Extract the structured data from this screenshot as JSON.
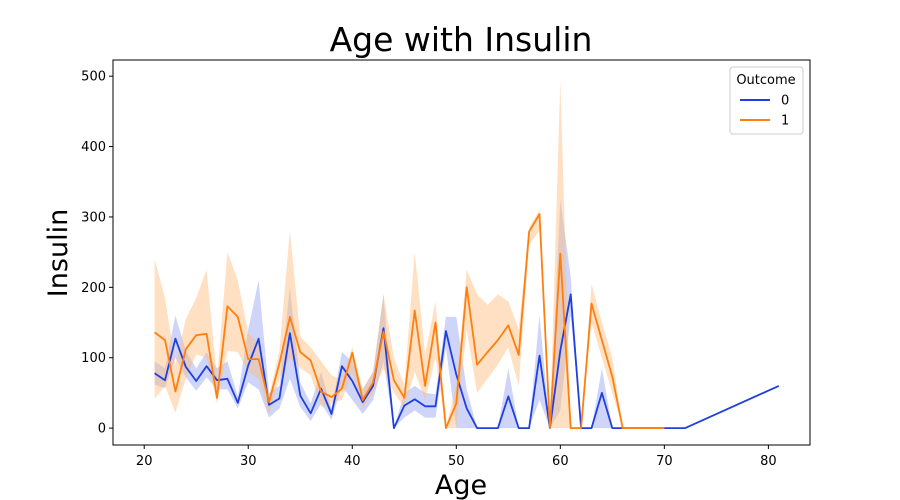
{
  "chart_data": {
    "type": "line",
    "title": "Age with Insulin",
    "xlabel": "Age",
    "ylabel": "Insulin",
    "xlim": [
      17,
      84
    ],
    "ylim": [
      -24,
      523
    ],
    "xticks": [
      20,
      30,
      40,
      50,
      60,
      70,
      80
    ],
    "yticks": [
      0,
      100,
      200,
      300,
      400,
      500
    ],
    "grid": false,
    "legend": {
      "title": "Outcome",
      "placement": "top-right"
    },
    "series": [
      {
        "name": "0",
        "color": "#1f3fe0",
        "band_color": "#1f3fe0",
        "x": [
          21,
          22,
          23,
          24,
          25,
          26,
          27,
          28,
          29,
          30,
          31,
          32,
          33,
          34,
          35,
          36,
          37,
          38,
          39,
          40,
          41,
          42,
          43,
          44,
          45,
          46,
          47,
          48,
          49,
          50,
          51,
          52,
          53,
          54,
          55,
          56,
          57,
          58,
          59,
          60,
          61,
          62,
          63,
          64,
          65,
          66,
          67,
          68,
          69,
          70,
          72,
          81
        ],
        "y": [
          78,
          68,
          127,
          87,
          67,
          88,
          68,
          70,
          36,
          89,
          127,
          33,
          42,
          135,
          46,
          21,
          56,
          20,
          88,
          67,
          37,
          60,
          142,
          0,
          32,
          41,
          31,
          31,
          138,
          76,
          28,
          0,
          0,
          0,
          45,
          0,
          0,
          103,
          0,
          110,
          190,
          0,
          0,
          50,
          0,
          0,
          0,
          0,
          0,
          0,
          0,
          60
        ],
        "lower": [
          62,
          57,
          100,
          72,
          53,
          72,
          55,
          55,
          28,
          65,
          55,
          15,
          28,
          70,
          30,
          10,
          35,
          12,
          60,
          40,
          20,
          40,
          95,
          0,
          15,
          25,
          15,
          15,
          115,
          0,
          0,
          0,
          0,
          0,
          0,
          0,
          0,
          40,
          0,
          25,
          160,
          0,
          0,
          0,
          0,
          0,
          0,
          0,
          0,
          0,
          0,
          60
        ],
        "upper": [
          95,
          85,
          160,
          110,
          85,
          108,
          85,
          95,
          45,
          140,
          210,
          50,
          60,
          200,
          65,
          35,
          80,
          28,
          108,
          95,
          55,
          80,
          190,
          0,
          50,
          60,
          50,
          48,
          158,
          158,
          55,
          0,
          0,
          0,
          85,
          0,
          0,
          160,
          0,
          325,
          215,
          0,
          0,
          85,
          0,
          0,
          0,
          0,
          0,
          0,
          0,
          60
        ]
      },
      {
        "name": "1",
        "color": "#ff7f0e",
        "band_color": "#ffbb78",
        "x": [
          21,
          22,
          23,
          24,
          25,
          26,
          27,
          28,
          29,
          30,
          31,
          32,
          33,
          34,
          35,
          36,
          37,
          38,
          39,
          40,
          41,
          42,
          43,
          44,
          45,
          46,
          47,
          48,
          49,
          50,
          51,
          52,
          53,
          54,
          55,
          56,
          57,
          58,
          59,
          60,
          61,
          62,
          63,
          64,
          65,
          66,
          67,
          68,
          69,
          70
        ],
        "y": [
          136,
          125,
          52,
          112,
          132,
          134,
          43,
          173,
          158,
          98,
          98,
          37,
          92,
          158,
          108,
          96,
          52,
          44,
          56,
          107,
          40,
          65,
          137,
          68,
          43,
          167,
          60,
          150,
          0,
          35,
          200,
          90,
          108,
          125,
          146,
          104,
          279,
          304,
          0,
          248,
          0,
          0,
          177,
          125,
          73,
          0,
          0,
          0,
          0,
          0
        ],
        "lower": [
          42,
          60,
          22,
          70,
          105,
          100,
          35,
          110,
          108,
          80,
          70,
          20,
          70,
          100,
          85,
          75,
          30,
          35,
          40,
          80,
          28,
          50,
          85,
          50,
          30,
          80,
          40,
          100,
          0,
          0,
          140,
          50,
          70,
          90,
          115,
          60,
          260,
          280,
          0,
          0,
          0,
          0,
          150,
          100,
          50,
          0,
          0,
          0,
          0,
          0
        ],
        "upper": [
          240,
          185,
          90,
          155,
          185,
          225,
          70,
          250,
          210,
          135,
          120,
          45,
          110,
          280,
          130,
          115,
          95,
          75,
          68,
          115,
          55,
          80,
          190,
          100,
          60,
          250,
          105,
          180,
          0,
          60,
          225,
          190,
          175,
          190,
          180,
          140,
          285,
          310,
          0,
          495,
          0,
          0,
          205,
          150,
          100,
          0,
          0,
          0,
          0,
          0
        ]
      }
    ]
  }
}
